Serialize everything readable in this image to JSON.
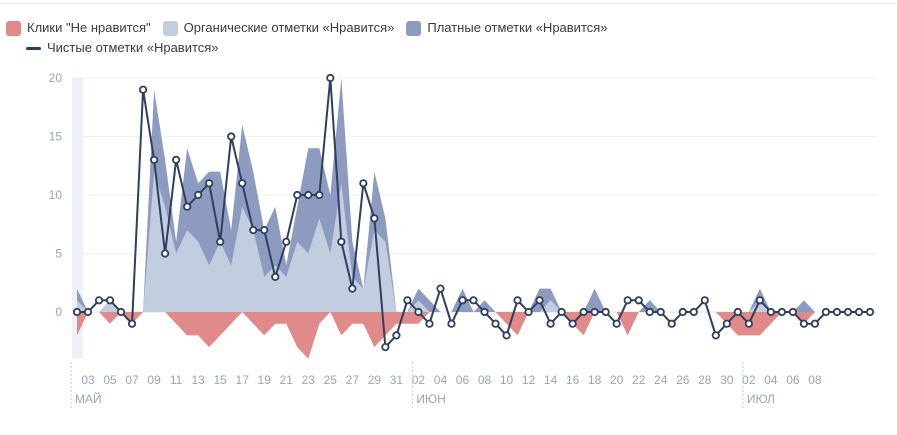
{
  "chart_data": {
    "type": "area",
    "title": "",
    "xlabel": "",
    "ylabel": "",
    "ylim": [
      -4,
      20
    ],
    "yticks": [
      0,
      5,
      10,
      15,
      20
    ],
    "grid": true,
    "legend_position": "top-left",
    "legend": [
      {
        "name": "Клики \"Не нравится\"",
        "color": "#e08a8a",
        "kind": "area"
      },
      {
        "name": "Органические отметки «Нравится»",
        "color": "#c3cde0",
        "kind": "area"
      },
      {
        "name": "Платные отметки «Нравится»",
        "color": "#8d9bc1",
        "kind": "area"
      },
      {
        "name": "Чистые отметки «Нравится»",
        "color": "#2f3f5f",
        "kind": "line"
      }
    ],
    "x_tick_labels": [
      "03",
      "05",
      "07",
      "09",
      "11",
      "13",
      "15",
      "17",
      "19",
      "21",
      "23",
      "25",
      "27",
      "29",
      "31",
      "02",
      "04",
      "06",
      "08",
      "10",
      "12",
      "14",
      "16",
      "18",
      "20",
      "22",
      "24",
      "26",
      "28",
      "30",
      "02",
      "04",
      "06",
      "08"
    ],
    "month_labels": [
      {
        "label": "МАЙ",
        "at_index": 0
      },
      {
        "label": "ИЮН",
        "at_index": 31
      },
      {
        "label": "ИЮЛ",
        "at_index": 61
      }
    ],
    "series": [
      {
        "name": "Клики \"Не нравится\"",
        "values": [
          -2,
          0,
          0,
          -1,
          0,
          -1,
          0,
          0,
          0,
          -1,
          -2,
          -2,
          -3,
          -2,
          -1,
          0,
          -1,
          -2,
          -1,
          -1,
          -3,
          -4,
          -1,
          0,
          -2,
          -1,
          -1,
          -3,
          -2,
          -1,
          -1,
          -1,
          0,
          0,
          0,
          0,
          0,
          0,
          0,
          -1,
          -2,
          0,
          0,
          0,
          0,
          -1,
          -2,
          0,
          0,
          0,
          -2,
          0,
          0,
          0,
          0,
          0,
          0,
          0,
          0,
          -1,
          -2,
          -2,
          -2,
          -1,
          0,
          0,
          -1,
          0,
          0,
          0,
          0,
          0,
          0
        ]
      },
      {
        "name": "Органические отметки «Нравится»",
        "values": [
          1,
          0,
          0,
          1,
          0,
          0,
          0,
          12,
          9,
          5,
          7,
          6,
          4,
          6,
          4,
          9,
          7,
          3,
          4,
          3,
          6,
          5,
          8,
          5,
          11,
          3,
          2,
          7,
          6,
          0,
          0,
          1,
          0,
          0,
          0,
          0,
          0,
          0,
          0,
          0,
          0,
          0,
          0,
          1,
          0,
          0,
          0,
          0,
          0,
          0,
          0,
          0,
          0,
          0,
          0,
          0,
          0,
          0,
          0,
          0,
          0,
          0,
          1,
          0,
          0,
          0,
          0,
          0,
          0,
          0,
          0,
          0,
          0
        ]
      },
      {
        "name": "Платные отметки «Нравится»",
        "values": [
          1,
          0,
          0,
          0,
          0,
          0,
          0,
          7,
          4,
          1,
          7,
          5,
          8,
          6,
          3,
          7,
          5,
          4,
          5,
          1,
          3,
          9,
          6,
          5,
          9,
          3,
          0,
          5,
          2,
          0,
          0,
          1,
          1,
          0,
          0,
          2,
          0,
          1,
          0,
          0,
          0,
          0,
          2,
          1,
          0,
          0,
          0,
          2,
          0,
          0,
          0,
          0,
          1,
          0,
          0,
          0,
          0,
          0,
          0,
          0,
          0,
          0,
          1,
          0,
          0,
          0,
          1,
          0,
          0,
          0,
          0,
          0,
          0
        ]
      },
      {
        "name": "Чистые отметки «Нравится»",
        "values": [
          0,
          0,
          1,
          1,
          0,
          -1,
          19,
          13,
          5,
          13,
          9,
          10,
          11,
          6,
          15,
          11,
          7,
          7,
          3,
          6,
          10,
          10,
          10,
          20,
          6,
          2,
          11,
          8,
          -3,
          -2,
          1,
          0,
          -1,
          2,
          -1,
          1,
          1,
          0,
          -1,
          -2,
          1,
          0,
          1,
          -1,
          0,
          -1,
          0,
          0,
          0,
          -1,
          1,
          1,
          0,
          0,
          -1,
          0,
          0,
          1,
          -2,
          -1,
          0,
          -1,
          1,
          0,
          0,
          0,
          -1,
          -1,
          0,
          0,
          0,
          0,
          0
        ]
      }
    ]
  }
}
